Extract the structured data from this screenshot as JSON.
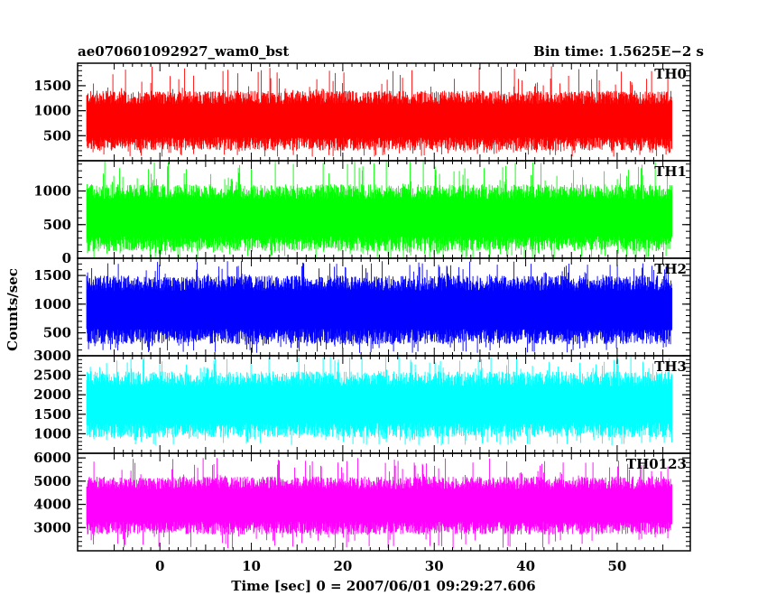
{
  "chart_data": {
    "type": "line",
    "title": "ae070601092927_wam0_bst",
    "subtitle": "Bin time: 1.5625E−2 s",
    "xlabel": "Time [sec] 0 = 2007/06/01 09:29:27.606",
    "ylabel": "Counts/sec",
    "xlim": [
      -9,
      58
    ],
    "data_xrange": [
      -8,
      56
    ],
    "x_ticks": [
      0,
      10,
      20,
      30,
      40,
      50
    ],
    "x_tick_labels": [
      "0",
      "10",
      "20",
      "30",
      "40",
      "50"
    ],
    "grid": false,
    "panels": [
      {
        "name": "TH0",
        "color": "#ff0000",
        "ylim": [
          0,
          1950
        ],
        "y_ticks": [
          500,
          1000,
          1500
        ],
        "y_tick_labels": [
          "500",
          "1000",
          "1500"
        ],
        "typical_range": [
          200,
          1400
        ],
        "min": 80,
        "max": 1900
      },
      {
        "name": "TH1",
        "color": "#00ff00",
        "ylim": [
          0,
          1450
        ],
        "y_ticks": [
          0,
          500,
          1000
        ],
        "y_tick_labels": [
          "0",
          "500",
          "1000"
        ],
        "typical_range": [
          100,
          1100
        ],
        "min": 0,
        "max": 1450
      },
      {
        "name": "TH2",
        "color": "#0000ff",
        "ylim": [
          100,
          1800
        ],
        "y_ticks": [
          500,
          1000,
          1500
        ],
        "y_tick_labels": [
          "500",
          "1000",
          "1500"
        ],
        "typical_range": [
          300,
          1500
        ],
        "min": 150,
        "max": 1750
      },
      {
        "name": "TH3",
        "color": "#00ffff",
        "ylim": [
          500,
          3000
        ],
        "y_ticks": [
          1000,
          1500,
          2000,
          2500,
          3000
        ],
        "y_tick_labels": [
          "1000",
          "1500",
          "2000",
          "2500",
          "3000"
        ],
        "typical_range": [
          900,
          2600
        ],
        "min": 700,
        "max": 3000
      },
      {
        "name": "TH0123",
        "color": "#ff00ff",
        "ylim": [
          2000,
          6200
        ],
        "y_ticks": [
          3000,
          4000,
          5000,
          6000
        ],
        "y_tick_labels": [
          "3000",
          "4000",
          "5000",
          "6000"
        ],
        "typical_range": [
          2700,
          5200
        ],
        "min": 2100,
        "max": 6000
      }
    ]
  }
}
